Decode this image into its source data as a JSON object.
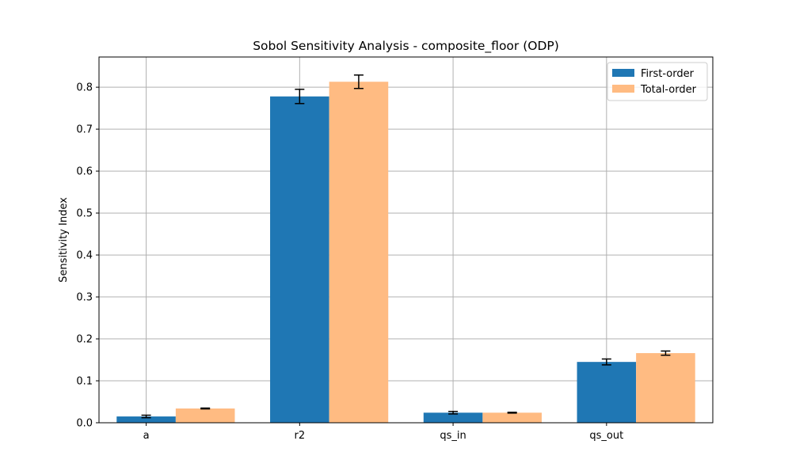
{
  "chart_data": {
    "type": "bar",
    "title": "Sobol Sensitivity Analysis - composite_floor (ODP)",
    "xlabel": "",
    "ylabel": "Sensitivity Index",
    "categories": [
      "a",
      "r2",
      "qs_in",
      "qs_out"
    ],
    "series": [
      {
        "name": "First-order",
        "values": [
          0.015,
          0.778,
          0.024,
          0.145
        ],
        "errors": [
          0.003,
          0.017,
          0.003,
          0.007
        ],
        "color": "#1f77b4"
      },
      {
        "name": "Total-order",
        "values": [
          0.034,
          0.813,
          0.024,
          0.166
        ],
        "errors": [
          0.001,
          0.016,
          0.001,
          0.005
        ],
        "color": "#ffbb82"
      }
    ],
    "ylim": [
      0,
      0.872
    ],
    "yticks": [
      "0.0",
      "0.1",
      "0.2",
      "0.3",
      "0.4",
      "0.5",
      "0.6",
      "0.7",
      "0.8"
    ],
    "grid": true,
    "legend_position": "top-right"
  }
}
